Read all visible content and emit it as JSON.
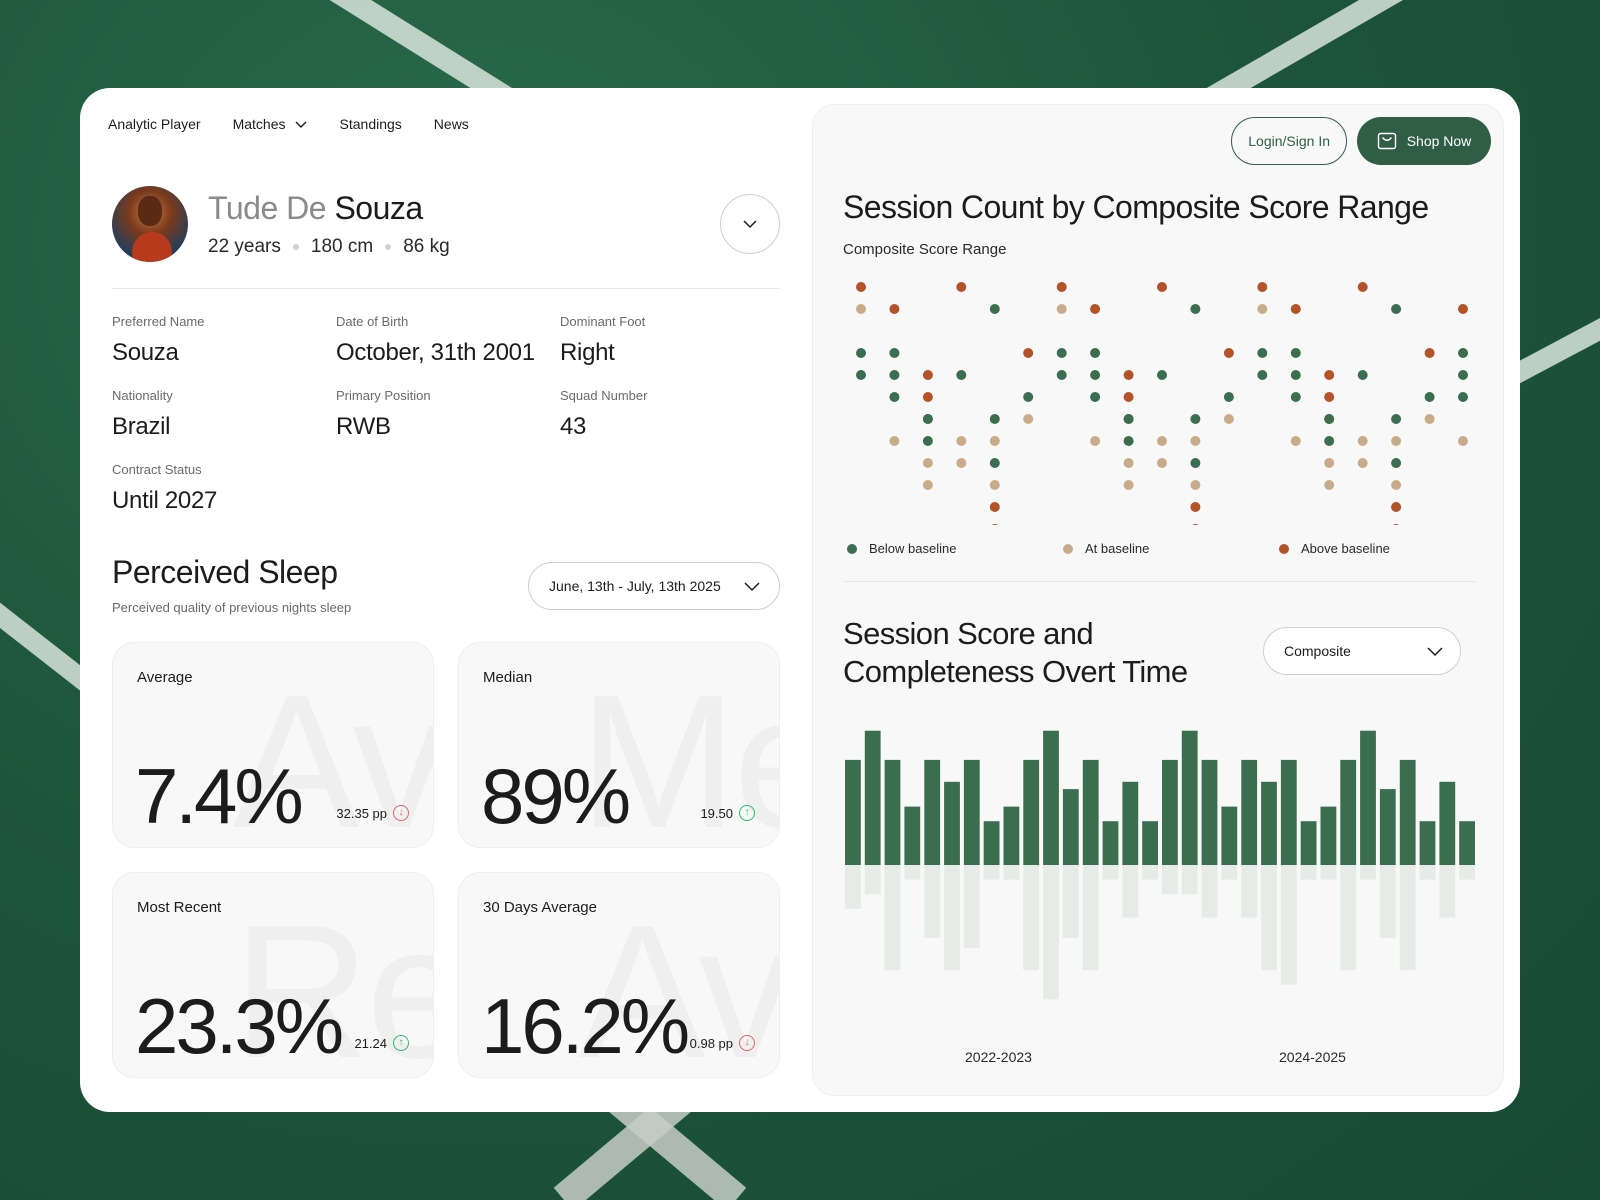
{
  "nav": {
    "brand": "Analytic Player",
    "matches": "Matches",
    "standings": "Standings",
    "news": "News"
  },
  "player": {
    "first_name": "Tude De",
    "last_name": "Souza",
    "age": "22 years",
    "height": "180 cm",
    "weight": "86 kg"
  },
  "info": {
    "preferred_name_label": "Preferred Name",
    "preferred_name": "Souza",
    "dob_label": "Date of Birth",
    "dob": "October, 31th 2001",
    "foot_label": "Dominant Foot",
    "foot": "Right",
    "nationality_label": "Nationality",
    "nationality": "Brazil",
    "position_label": "Primary Position",
    "position": "RWB",
    "squad_label": "Squad Number",
    "squad": "43",
    "contract_label": "Contract Status",
    "contract": "Until 2027"
  },
  "sleep": {
    "title": "Perceived Sleep",
    "subtitle": "Perceived quality of previous nights sleep",
    "date_range": "June, 13th - July, 13th 2025",
    "cards": [
      {
        "title": "Average",
        "ghost": "Ave",
        "value": "7.4%",
        "delta": "32.35 pp",
        "direction": "down"
      },
      {
        "title": "Median",
        "ghost": "Me",
        "value": "89%",
        "delta": "19.50",
        "direction": "up"
      },
      {
        "title": "Most Recent",
        "ghost": "Re",
        "value": "23.3%",
        "delta": "21.24",
        "direction": "up"
      },
      {
        "title": "30 Days Average",
        "ghost": "Ave",
        "value": "16.2%",
        "delta": "0.98 pp",
        "direction": "down"
      }
    ]
  },
  "header_actions": {
    "login": "Login/Sign In",
    "shop": "Shop Now"
  },
  "colors": {
    "green": "#3b6e4f",
    "tan": "#c8ac8a",
    "orange": "#b4522a",
    "dark_green": "#2f5e45",
    "light_bar": "#e7ebe8"
  },
  "chart_data": [
    {
      "type": "scatter",
      "title": "Session Count by Composite Score Range",
      "subtitle": "Composite Score Range",
      "legend": [
        "Below baseline",
        "At baseline",
        "Above baseline"
      ],
      "note": "Dot strip per column, rows are vertical score ranks (0 = top, 10 = bottom); category index 0=Below,1=At,2=Above",
      "columns": [
        [
          [
            0,
            2
          ],
          [
            1,
            1
          ],
          [
            3,
            0
          ],
          [
            4,
            0
          ]
        ],
        [
          [
            1,
            2
          ],
          [
            3,
            0
          ],
          [
            4,
            0
          ],
          [
            5,
            0
          ],
          [
            7,
            1
          ]
        ],
        [
          [
            4,
            2
          ],
          [
            5,
            2
          ],
          [
            6,
            2
          ],
          [
            6,
            0
          ],
          [
            7,
            0
          ],
          [
            8,
            1
          ],
          [
            9,
            1
          ]
        ],
        [
          [
            0,
            2
          ],
          [
            4,
            0
          ],
          [
            7,
            1
          ],
          [
            8,
            1
          ]
        ],
        [
          [
            1,
            0
          ],
          [
            6,
            0
          ],
          [
            7,
            1
          ],
          [
            8,
            0
          ],
          [
            9,
            1
          ],
          [
            10,
            2
          ],
          [
            11,
            2
          ]
        ],
        [
          [
            3,
            2
          ],
          [
            5,
            0
          ],
          [
            6,
            1
          ]
        ],
        [
          [
            0,
            2
          ],
          [
            1,
            1
          ],
          [
            3,
            0
          ],
          [
            4,
            0
          ]
        ],
        [
          [
            1,
            2
          ],
          [
            3,
            0
          ],
          [
            4,
            0
          ],
          [
            5,
            0
          ],
          [
            7,
            1
          ]
        ],
        [
          [
            4,
            2
          ],
          [
            5,
            2
          ],
          [
            6,
            2
          ],
          [
            6,
            0
          ],
          [
            7,
            0
          ],
          [
            8,
            1
          ],
          [
            9,
            1
          ]
        ],
        [
          [
            0,
            2
          ],
          [
            4,
            0
          ],
          [
            7,
            1
          ],
          [
            8,
            1
          ]
        ],
        [
          [
            1,
            0
          ],
          [
            6,
            0
          ],
          [
            7,
            1
          ],
          [
            8,
            0
          ],
          [
            9,
            1
          ],
          [
            10,
            2
          ],
          [
            11,
            2
          ]
        ],
        [
          [
            3,
            2
          ],
          [
            5,
            0
          ],
          [
            6,
            1
          ]
        ],
        [
          [
            0,
            2
          ],
          [
            1,
            1
          ],
          [
            3,
            0
          ],
          [
            4,
            0
          ]
        ],
        [
          [
            1,
            2
          ],
          [
            3,
            0
          ],
          [
            4,
            0
          ],
          [
            5,
            0
          ],
          [
            7,
            1
          ]
        ],
        [
          [
            4,
            2
          ],
          [
            5,
            2
          ],
          [
            6,
            2
          ],
          [
            6,
            0
          ],
          [
            7,
            0
          ],
          [
            8,
            1
          ],
          [
            9,
            1
          ]
        ],
        [
          [
            0,
            2
          ],
          [
            4,
            0
          ],
          [
            7,
            1
          ],
          [
            8,
            1
          ]
        ],
        [
          [
            1,
            0
          ],
          [
            6,
            0
          ],
          [
            7,
            1
          ],
          [
            8,
            0
          ],
          [
            9,
            1
          ],
          [
            10,
            2
          ],
          [
            11,
            2
          ]
        ],
        [
          [
            3,
            2
          ],
          [
            5,
            0
          ],
          [
            6,
            1
          ]
        ],
        [
          [
            1,
            2
          ],
          [
            3,
            0
          ],
          [
            4,
            0
          ],
          [
            5,
            0
          ],
          [
            7,
            1
          ]
        ]
      ]
    },
    {
      "type": "bar",
      "title": "Session Score and Completeness Overt Time",
      "selected_metric": "Composite",
      "x_labels": [
        "2022-2023",
        "2024-2025"
      ],
      "series": [
        {
          "name": "Score",
          "values": [
            72,
            92,
            72,
            40,
            72,
            57,
            72,
            30,
            40,
            72,
            92,
            52,
            72,
            30,
            57,
            30,
            72,
            92,
            72,
            40,
            72,
            57,
            72,
            30,
            40,
            72,
            92,
            52,
            72,
            30,
            57,
            30
          ]
        },
        {
          "name": "Completeness",
          "values": [
            30,
            20,
            72,
            10,
            50,
            72,
            57,
            10,
            10,
            72,
            92,
            50,
            72,
            10,
            36,
            10,
            20,
            20,
            36,
            10,
            36,
            72,
            82,
            10,
            10,
            72,
            10,
            50,
            72,
            10,
            36,
            10
          ]
        }
      ],
      "ylim": [
        0,
        100
      ]
    }
  ]
}
